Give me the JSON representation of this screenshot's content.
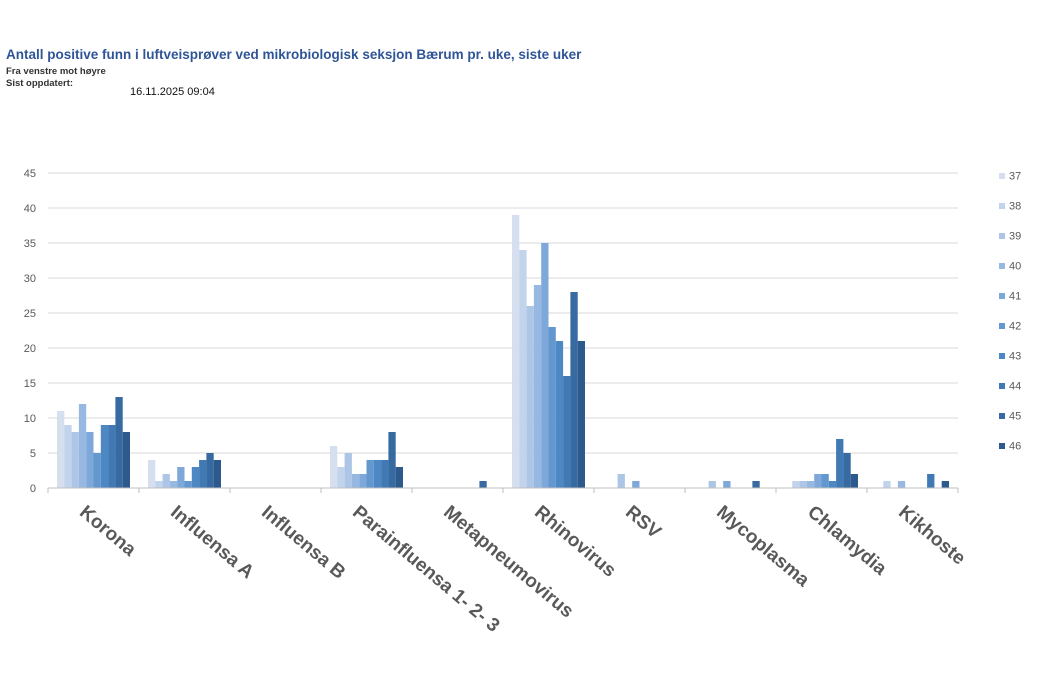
{
  "header": {
    "title": "Antall positive funn i luftveisprøver ved mikrobiologisk seksjon Bærum pr. uke, siste uker",
    "subtitle": "Fra venstre mot høyre",
    "updated_label": "Sist oppdatert:",
    "updated_value": "16.11.2025 09:04"
  },
  "chart_data": {
    "type": "bar",
    "title": "Antall positive funn i luftveisprøver ved mikrobiologisk seksjon Bærum pr. uke, siste uker",
    "xlabel": "",
    "ylabel": "",
    "ylim": [
      0,
      45
    ],
    "yticks": [
      0,
      5,
      10,
      15,
      20,
      25,
      30,
      35,
      40,
      45
    ],
    "grid": true,
    "legend_position": "right",
    "categories": [
      "Korona",
      "Influensa A",
      "Influensa B",
      "Parainfluensa 1- 2- 3",
      "Metapneumovirus",
      "Rhinovirus",
      "RSV",
      "Mycoplasma",
      "Chlamydia",
      "Kikhoste"
    ],
    "series": [
      {
        "name": "37",
        "color": "#d6dff0",
        "values": [
          11,
          4,
          0,
          6,
          0,
          39,
          0,
          0,
          0,
          0
        ]
      },
      {
        "name": "38",
        "color": "#c2d3ec",
        "values": [
          9,
          1,
          0,
          3,
          0,
          34,
          0,
          0,
          1,
          1
        ]
      },
      {
        "name": "39",
        "color": "#adc6e6",
        "values": [
          8,
          2,
          0,
          5,
          0,
          26,
          2,
          1,
          1,
          0
        ]
      },
      {
        "name": "40",
        "color": "#97b8e0",
        "values": [
          12,
          1,
          0,
          2,
          0,
          29,
          0,
          0,
          1,
          1
        ]
      },
      {
        "name": "41",
        "color": "#7ea8d9",
        "values": [
          8,
          3,
          0,
          2,
          0,
          35,
          1,
          1,
          2,
          0
        ]
      },
      {
        "name": "42",
        "color": "#6398cf",
        "values": [
          5,
          1,
          0,
          4,
          0,
          23,
          0,
          0,
          2,
          0
        ]
      },
      {
        "name": "43",
        "color": "#4e88c4",
        "values": [
          9,
          3,
          0,
          4,
          0,
          21,
          0,
          0,
          1,
          0
        ]
      },
      {
        "name": "44",
        "color": "#4179b4",
        "values": [
          9,
          4,
          0,
          4,
          0,
          16,
          0,
          0,
          7,
          2
        ]
      },
      {
        "name": "45",
        "color": "#366aa1",
        "values": [
          13,
          5,
          0,
          8,
          1,
          28,
          0,
          1,
          5,
          0
        ]
      },
      {
        "name": "46",
        "color": "#2d5a8c",
        "values": [
          8,
          4,
          0,
          3,
          0,
          21,
          0,
          0,
          2,
          1
        ]
      }
    ]
  }
}
